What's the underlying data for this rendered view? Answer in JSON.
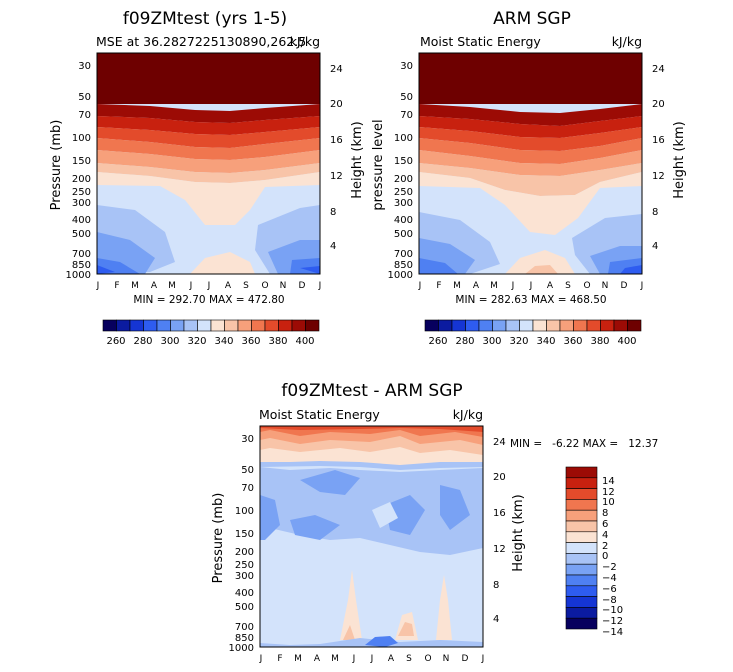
{
  "palettes": {
    "mse": [
      "#07005e",
      "#0b1ba0",
      "#1535d4",
      "#2e5cf0",
      "#4f80f2",
      "#79a2f4",
      "#a8c3f6",
      "#d3e3fb",
      "#fbe3d3",
      "#f8c4a8",
      "#f7a07b",
      "#f0764f",
      "#e34b2b",
      "#c8210f",
      "#9c0b05",
      "#6e0000"
    ],
    "diff": [
      "#07005e",
      "#0b1ba0",
      "#1535d4",
      "#2e5cf0",
      "#4f80f2",
      "#79a2f4",
      "#a8c3f6",
      "#d3e3fb",
      "#fbe3d3",
      "#f8c4a8",
      "#f7a07b",
      "#f0764f",
      "#e34b2b",
      "#c8210f",
      "#9c0b05"
    ]
  },
  "chart_data": [
    {
      "type": "contour",
      "title": "f09ZMtest (yrs 1-5)",
      "subtitle_left": "MSE at 36.2827225130890,262.5",
      "subtitle_right": "kJ/kg",
      "ylabel": "Pressure (mb)",
      "ylabel_right": "Height (km)",
      "xticks": [
        "J",
        "F",
        "M",
        "A",
        "M",
        "J",
        "J",
        "A",
        "S",
        "O",
        "N",
        "D",
        "J"
      ],
      "yticks": [
        30,
        50,
        70,
        100,
        150,
        200,
        250,
        300,
        400,
        500,
        700,
        850,
        1000
      ],
      "yticks_right": [
        24,
        20,
        16,
        12,
        8,
        4
      ],
      "stats": "MIN = 292.70 MAX = 472.80",
      "min": 292.7,
      "max": 472.8,
      "levels": [
        260,
        270,
        280,
        290,
        300,
        310,
        320,
        330,
        340,
        350,
        360,
        370,
        380,
        390,
        400
      ],
      "profile_top_km": 15.8
    },
    {
      "type": "contour",
      "title": "ARM SGP",
      "subtitle_left": "Moist Static Energy",
      "subtitle_right": "kJ/kg",
      "ylabel": "pressure level",
      "ylabel_right": "Height (km)",
      "xticks": [
        "J",
        "F",
        "M",
        "A",
        "M",
        "J",
        "J",
        "A",
        "S",
        "O",
        "N",
        "D",
        "J"
      ],
      "yticks": [
        30,
        50,
        70,
        100,
        150,
        200,
        250,
        300,
        400,
        500,
        700,
        850,
        1000
      ],
      "yticks_right": [
        24,
        20,
        16,
        12,
        8,
        4
      ],
      "stats": "MIN = 282.63 MAX = 468.50",
      "min": 282.63,
      "max": 468.5,
      "levels": [
        260,
        270,
        280,
        290,
        300,
        310,
        320,
        330,
        340,
        350,
        360,
        370,
        380,
        390,
        400
      ],
      "profile_top_km": 15.8
    },
    {
      "type": "colorbar",
      "tick_labels": [
        "260",
        "280",
        "300",
        "320",
        "340",
        "360",
        "380",
        "400"
      ]
    },
    {
      "type": "contour",
      "title": "f09ZMtest - ARM SGP",
      "subtitle_left": "Moist Static Energy",
      "subtitle_right": "kJ/kg",
      "ylabel": "Pressure (mb)",
      "ylabel_right": "Height (km)",
      "xticks": [
        "J",
        "F",
        "M",
        "A",
        "M",
        "J",
        "J",
        "A",
        "S",
        "O",
        "N",
        "D",
        "J"
      ],
      "yticks": [
        30,
        50,
        70,
        100,
        150,
        200,
        250,
        300,
        400,
        500,
        700,
        850,
        1000
      ],
      "yticks_right": [
        24,
        20,
        16,
        12,
        8,
        4
      ],
      "stats": "MIN =   -6.22 MAX =   12.37",
      "min": -6.22,
      "max": 12.37,
      "levels": [
        -14,
        -12,
        -10,
        -8,
        -6,
        -4,
        -2,
        0,
        2,
        4,
        6,
        8,
        10,
        12,
        14
      ],
      "legend_labels": [
        "14",
        "12",
        "10",
        "8",
        "6",
        "4",
        "2",
        "0",
        "−2",
        "−4",
        "−6",
        "−8",
        "−10",
        "−12",
        "−14"
      ]
    }
  ]
}
